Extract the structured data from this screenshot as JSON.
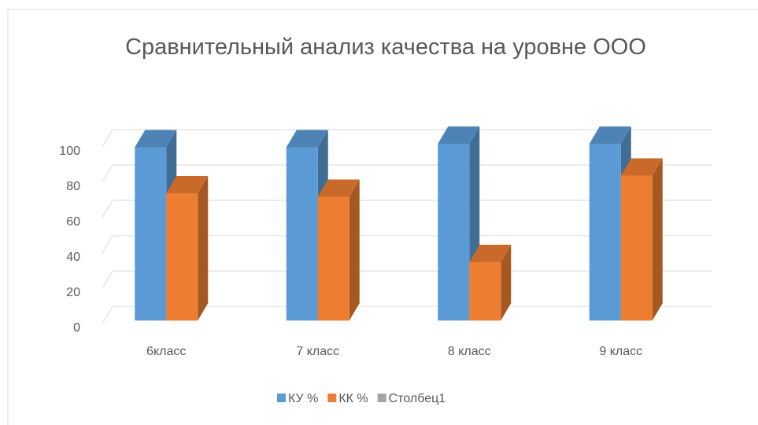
{
  "chart_data": {
    "type": "bar3d",
    "title": "Сравнительный анализ качества на уровне ООО",
    "categories": [
      "6класс",
      "7 класс",
      "8 класс",
      "9 класс"
    ],
    "series": [
      {
        "name": "КУ %",
        "color": "#5b9bd5",
        "values": [
          98,
          98,
          100,
          100
        ]
      },
      {
        "name": "КК %",
        "color": "#ed7d31",
        "values": [
          72,
          70,
          33,
          82
        ]
      },
      {
        "name": "Столбец1",
        "color": "#a5a5a5",
        "values": [
          null,
          null,
          null,
          null
        ]
      }
    ],
    "ylim": [
      0,
      100
    ],
    "yticks": [
      0,
      20,
      40,
      60,
      80,
      100
    ],
    "grid": true,
    "legend": "bottom"
  }
}
